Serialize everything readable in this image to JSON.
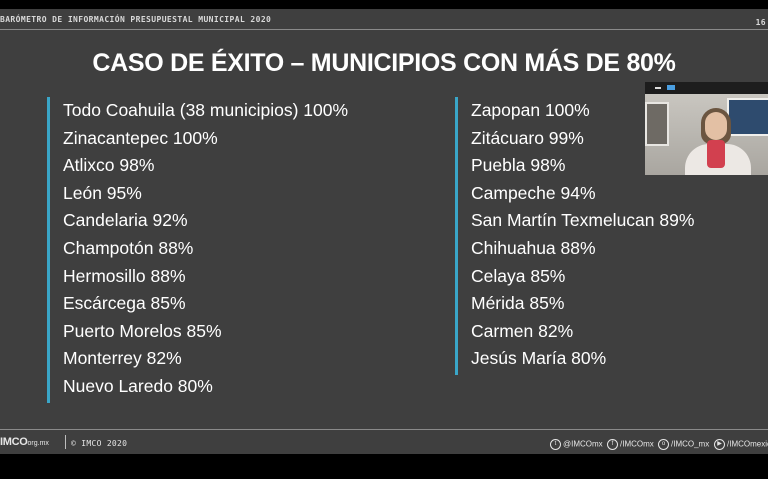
{
  "header": {
    "title": "BARÓMETRO DE INFORMACIÓN PRESUPUESTAL MUNICIPAL 2020",
    "page_number": "16"
  },
  "slide_title": "CASO DE ÉXITO – MUNICIPIOS CON MÁS DE 80%",
  "left_list": [
    "Todo Coahuila (38 municipios) 100%",
    "Zinacantepec 100%",
    "Atlixco 98%",
    "León 95%",
    "Candelaria 92%",
    "Champotón 88%",
    "Hermosillo 88%",
    "Escárcega 85%",
    "Puerto Morelos 85%",
    "Monterrey 82%",
    "Nuevo Laredo 80%"
  ],
  "right_list": [
    "Zapopan 100%",
    "Zitácuaro 99%",
    "Puebla 98%",
    "Campeche 94%",
    "San Martín Texmelucan 89%",
    "Chihuahua 88%",
    "Celaya 85%",
    "Mérida 85%",
    "Carmen 82%",
    "Jesús María 80%"
  ],
  "footer": {
    "logo": "IMCO",
    "logo_domain": "org.mx",
    "copyright": "© IMCO 2020",
    "social": [
      {
        "icon": "twitter-icon",
        "glyph": "t",
        "label": "@IMCOmx"
      },
      {
        "icon": "facebook-icon",
        "glyph": "f",
        "label": "/IMCOmx"
      },
      {
        "icon": "instagram-icon",
        "glyph": "o",
        "label": "/IMCO_mx"
      },
      {
        "icon": "youtube-icon",
        "glyph": "▶",
        "label": "/IMCOmexico"
      }
    ]
  },
  "colors": {
    "slide_background": "#3f3f3f",
    "accent_bar": "#3aa6c8",
    "text": "#ffffff"
  }
}
